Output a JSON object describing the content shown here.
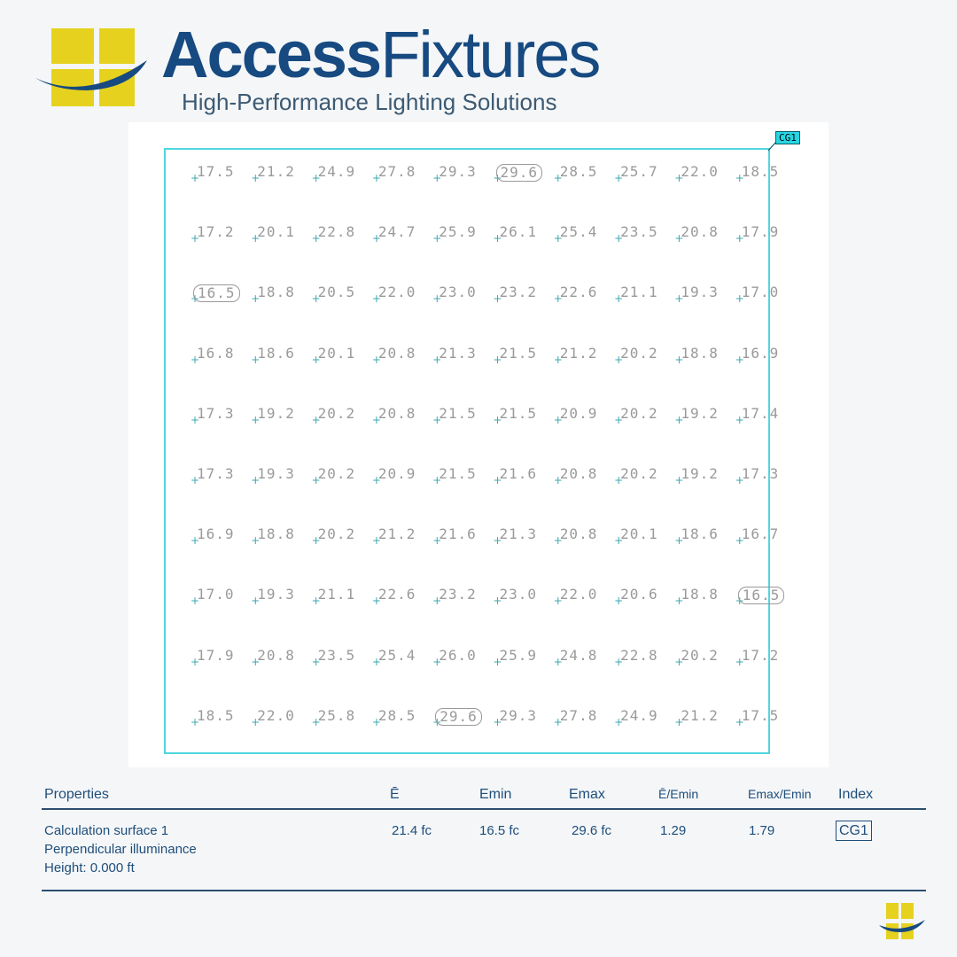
{
  "brand": {
    "name_bold": "Access",
    "name_regular": "Fixtures",
    "tagline": "High-Performance Lighting Solutions",
    "colors": {
      "yellow": "#e6d21e",
      "blue": "#174a80"
    }
  },
  "grid": {
    "tag": "CG1",
    "min_max_highlight": [
      [
        0,
        5
      ],
      [
        2,
        0
      ],
      [
        7,
        9
      ],
      [
        9,
        4
      ]
    ],
    "rows": [
      [
        "17.5",
        "21.2",
        "24.9",
        "27.8",
        "29.3",
        "29.6",
        "28.5",
        "25.7",
        "22.0",
        "18.5"
      ],
      [
        "17.2",
        "20.1",
        "22.8",
        "24.7",
        "25.9",
        "26.1",
        "25.4",
        "23.5",
        "20.8",
        "17.9"
      ],
      [
        "16.5",
        "18.8",
        "20.5",
        "22.0",
        "23.0",
        "23.2",
        "22.6",
        "21.1",
        "19.3",
        "17.0"
      ],
      [
        "16.8",
        "18.6",
        "20.1",
        "20.8",
        "21.3",
        "21.5",
        "21.2",
        "20.2",
        "18.8",
        "16.9"
      ],
      [
        "17.3",
        "19.2",
        "20.2",
        "20.8",
        "21.5",
        "21.5",
        "20.9",
        "20.2",
        "19.2",
        "17.4"
      ],
      [
        "17.3",
        "19.3",
        "20.2",
        "20.9",
        "21.5",
        "21.6",
        "20.8",
        "20.2",
        "19.2",
        "17.3"
      ],
      [
        "16.9",
        "18.8",
        "20.2",
        "21.2",
        "21.6",
        "21.3",
        "20.8",
        "20.1",
        "18.6",
        "16.7"
      ],
      [
        "17.0",
        "19.3",
        "21.1",
        "22.6",
        "23.2",
        "23.0",
        "22.0",
        "20.6",
        "18.8",
        "16.5"
      ],
      [
        "17.9",
        "20.8",
        "23.5",
        "25.4",
        "26.0",
        "25.9",
        "24.8",
        "22.8",
        "20.2",
        "17.2"
      ],
      [
        "18.5",
        "22.0",
        "25.8",
        "28.5",
        "29.6",
        "29.3",
        "27.8",
        "24.9",
        "21.2",
        "17.5"
      ]
    ]
  },
  "table": {
    "headers": [
      "Properties",
      "Ē",
      "Emin",
      "Emax",
      "Ē/Emin",
      "Emax/Emin",
      "Index"
    ],
    "row": {
      "properties": [
        "Calculation surface 1",
        "Perpendicular illuminance",
        "Height: 0.000 ft"
      ],
      "avg": "21.4 fc",
      "emin": "16.5 fc",
      "emax": "29.6 fc",
      "avg_min": "1.29",
      "max_min": "1.79",
      "index": "CG1"
    }
  }
}
